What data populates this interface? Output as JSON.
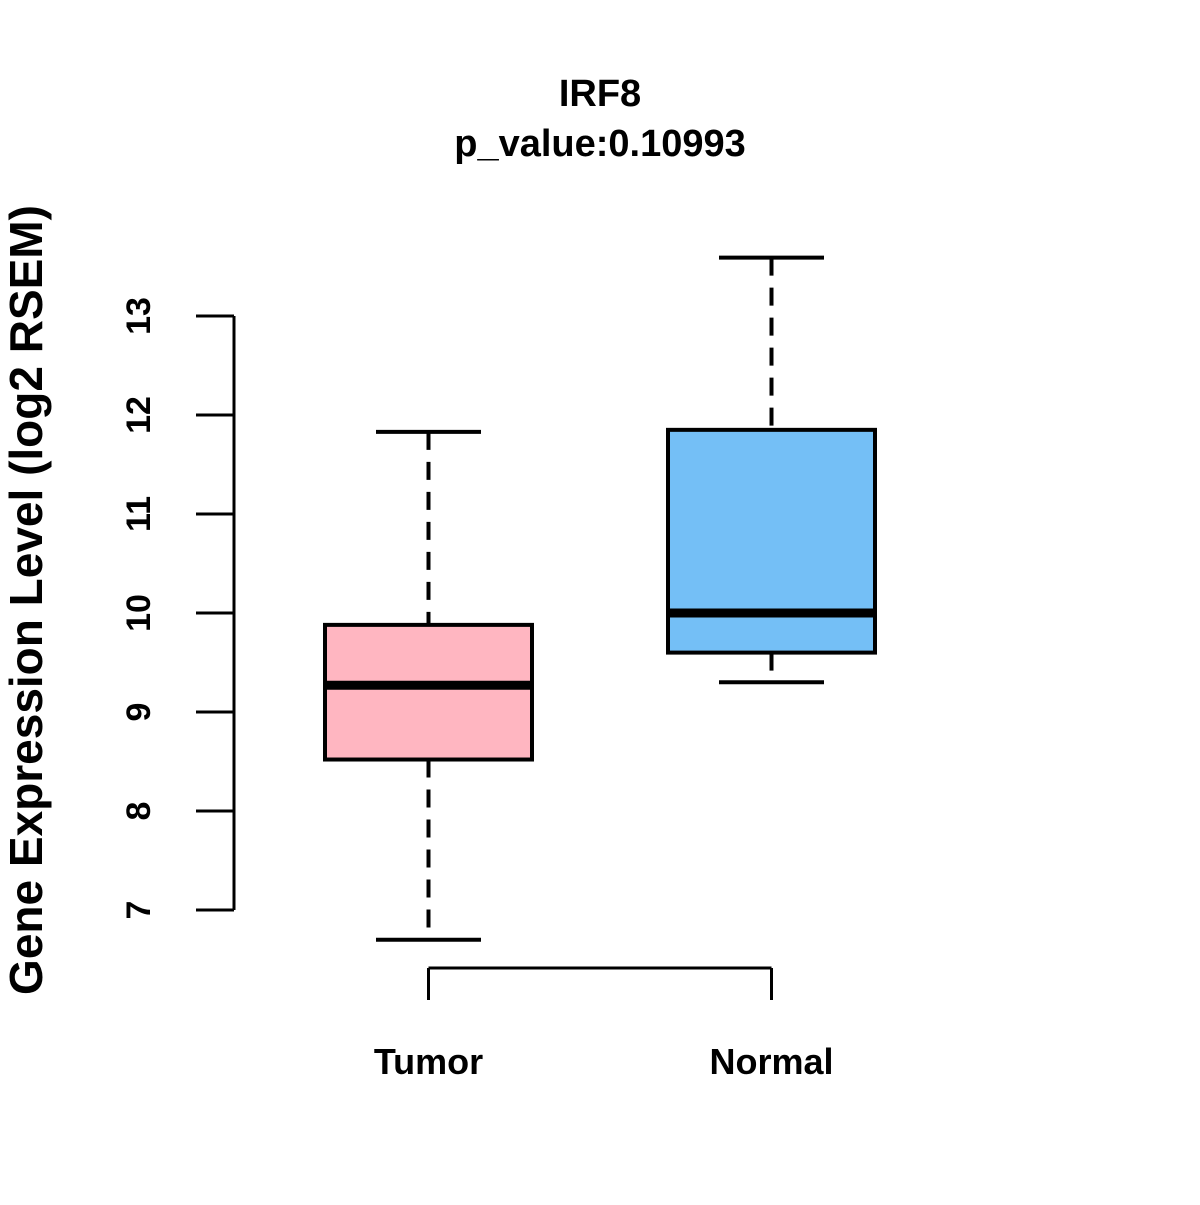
{
  "chart_data": {
    "type": "boxplot",
    "title": "IRF8",
    "subtitle": "p_value:0.10993",
    "ylabel": "Gene Expression Level (log2 RSEM)",
    "xlabel": "",
    "categories": [
      "Tumor",
      "Normal"
    ],
    "yticks": [
      7,
      8,
      9,
      10,
      11,
      12,
      13
    ],
    "ylim": [
      6.4,
      13.9
    ],
    "grid": false,
    "legend": "none",
    "series": [
      {
        "name": "Tumor",
        "color": "#FFB6C1",
        "whisker_low": 6.7,
        "q1": 8.52,
        "median": 9.27,
        "q3": 9.88,
        "whisker_high": 11.83,
        "outliers": []
      },
      {
        "name": "Normal",
        "color": "#74BFF6",
        "whisker_low": 9.3,
        "q1": 9.6,
        "median": 10.0,
        "q3": 11.85,
        "whisker_high": 13.59,
        "outliers": []
      }
    ],
    "comparison_bracket": {
      "from": "Tumor",
      "to": "Normal"
    }
  },
  "colors": {
    "background": "#FFFFFF",
    "stroke": "#000000"
  }
}
